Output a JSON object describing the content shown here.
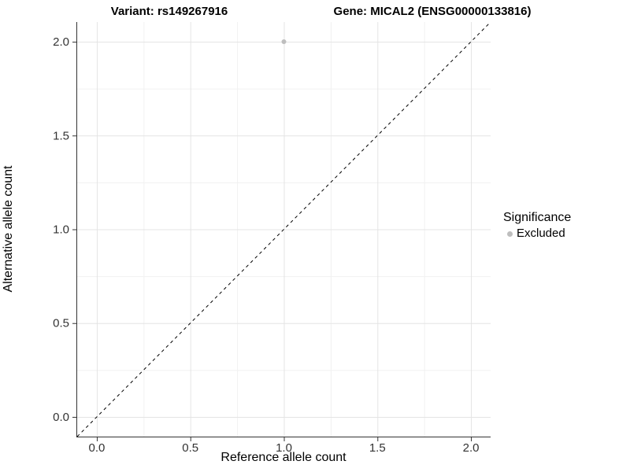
{
  "figure": {
    "title_left": "Variant: rs149267916",
    "title_right": "Gene: MICAL2 (ENSG00000133816)"
  },
  "chart_data": {
    "type": "scatter",
    "title": "Variant: rs149267916   Gene: MICAL2 (ENSG00000133816)",
    "xlabel": "Reference allele count",
    "ylabel": "Alternative allele count",
    "xlim": [
      -0.105,
      2.105
    ],
    "ylim": [
      -0.105,
      2.105
    ],
    "x_ticks": [
      0.0,
      0.5,
      1.0,
      1.5,
      2.0
    ],
    "y_ticks": [
      0.0,
      0.5,
      1.0,
      1.5,
      2.0
    ],
    "x_tick_labels": [
      "0.0",
      "0.5",
      "1.0",
      "1.5",
      "2.0"
    ],
    "y_tick_labels": [
      "0.0",
      "0.5",
      "1.0",
      "1.5",
      "2.0"
    ],
    "minor_ticks": [
      0.25,
      0.75,
      1.25,
      1.75
    ],
    "grid": true,
    "series": [
      {
        "name": "Excluded",
        "points": [
          {
            "x": 1.0,
            "y": 2.0
          }
        ]
      }
    ],
    "reference_line": {
      "type": "identity",
      "slope": 1,
      "intercept": 0,
      "style": "dashed",
      "color": "#000000"
    },
    "legend": {
      "title": "Significance",
      "position": "right",
      "entries": [
        {
          "label": "Excluded",
          "color": "#bebebe",
          "marker": "circle"
        }
      ]
    },
    "colors": {
      "point": "#bebebe",
      "grid_major": "#e4e4e4",
      "grid_minor": "#f1f1f1",
      "axis_line": "#333333",
      "tick_mark": "#333333",
      "tick_text": "#333333",
      "background": "#ffffff"
    }
  }
}
